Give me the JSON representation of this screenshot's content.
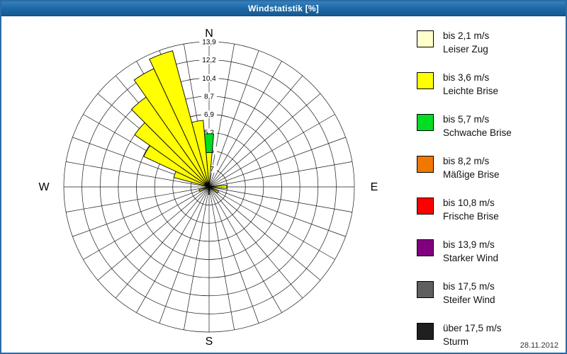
{
  "window": {
    "title": "Windstatistik [%]",
    "date": "28.11.2012"
  },
  "compass": {
    "n": "N",
    "e": "E",
    "s": "S",
    "w": "W"
  },
  "chart_data": {
    "type": "wind_rose",
    "title": "Windstatistik [%]",
    "unit": "%",
    "rings": 8,
    "max_value": 13.9,
    "ring_labels": [
      "1,7",
      "3,5",
      "5,2",
      "6,9",
      "8,7",
      "10,4",
      "12,2",
      "13,9"
    ],
    "sector_width_deg": 10,
    "grid": true,
    "legend_position": "right",
    "classes": [
      {
        "range": "bis 2,1 m/s",
        "name": "Leiser Zug",
        "color": "#FFFFCC"
      },
      {
        "range": "bis 3,6 m/s",
        "name": "Leichte Brise",
        "color": "#FFFF00"
      },
      {
        "range": "bis 5,7 m/s",
        "name": "Schwache Brise",
        "color": "#00DD22"
      },
      {
        "range": "bis 8,2 m/s",
        "name": "Mäßige Brise",
        "color": "#F07800"
      },
      {
        "range": "bis 10,8 m/s",
        "name": "Frische Brise",
        "color": "#FF0000"
      },
      {
        "range": "bis 13,9 m/s",
        "name": "Starker Wind",
        "color": "#800080"
      },
      {
        "range": "bis 17,5 m/s",
        "name": "Steifer Wind",
        "color": "#5f5f5f"
      },
      {
        "range": "über 17,5 m/s",
        "name": "Sturm",
        "color": "#1f1f1f"
      }
    ],
    "sectors": [
      {
        "dir_deg": 0,
        "values": [
          0.4,
          2.9,
          1.8,
          0,
          0,
          0,
          0,
          0
        ]
      },
      {
        "dir_deg": 90,
        "values": [
          0.3,
          1.4,
          0,
          0,
          0,
          0,
          0,
          0
        ]
      },
      {
        "dir_deg": 120,
        "values": [
          0.2,
          0.8,
          0,
          0,
          0,
          0,
          0,
          0
        ]
      },
      {
        "dir_deg": 180,
        "values": [
          0.2,
          0.5,
          0,
          0,
          0,
          0,
          0,
          0
        ]
      },
      {
        "dir_deg": 250,
        "values": [
          0.2,
          0.8,
          0,
          0,
          0,
          0,
          0,
          0
        ]
      },
      {
        "dir_deg": 290,
        "values": [
          0.3,
          3.2,
          0,
          0,
          0,
          0,
          0,
          0
        ]
      },
      {
        "dir_deg": 300,
        "values": [
          0.4,
          6.5,
          0,
          0,
          0,
          0,
          0,
          0
        ]
      },
      {
        "dir_deg": 310,
        "values": [
          0.5,
          8.2,
          0,
          0,
          0,
          0,
          0,
          0
        ]
      },
      {
        "dir_deg": 320,
        "values": [
          0.5,
          10.0,
          0,
          0,
          0,
          0,
          0,
          0
        ]
      },
      {
        "dir_deg": 330,
        "values": [
          0.5,
          12.0,
          0,
          0,
          0,
          0,
          0,
          0
        ]
      },
      {
        "dir_deg": 340,
        "values": [
          0.5,
          13.0,
          0,
          0,
          0,
          0,
          0,
          0
        ]
      },
      {
        "dir_deg": 350,
        "values": [
          0.4,
          6.0,
          0,
          0,
          0,
          0,
          0,
          0
        ]
      }
    ]
  },
  "colors": {
    "titlebar_top": "#3581bd",
    "titlebar_bottom": "#155a93",
    "window_border": "#2b6ba5",
    "grid_line": "#1a1a1a",
    "background": "#ffffff"
  }
}
